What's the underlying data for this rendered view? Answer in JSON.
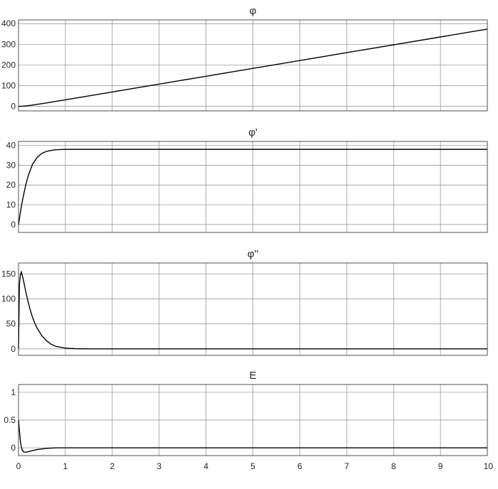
{
  "chart_data": [
    {
      "type": "line",
      "title": "φ",
      "xlim": [
        0,
        10
      ],
      "ylim": [
        -22,
        418
      ],
      "x_ticks": [
        "0",
        "1",
        "2",
        "3",
        "4",
        "5",
        "6",
        "7",
        "8",
        "9",
        "10"
      ],
      "y_ticks": [
        0,
        100,
        200,
        300,
        400
      ],
      "y_tick_labels": [
        "0",
        "100",
        "200",
        "300",
        "400"
      ],
      "x_tick_labels_visible": false,
      "grid": true,
      "series": [
        {
          "x": [
            0,
            0.05,
            0.1,
            0.2,
            0.3,
            0.4,
            0.5,
            0.6,
            0.8,
            1,
            1.5,
            2,
            3,
            4,
            5,
            6,
            7,
            8,
            9,
            10
          ],
          "y": [
            0,
            0.2,
            0.8,
            3,
            6,
            9.5,
            13,
            16.5,
            24,
            31.5,
            50.5,
            69.5,
            107.5,
            145.5,
            183.5,
            221.5,
            259.5,
            297.5,
            335.5,
            373.5
          ]
        }
      ]
    },
    {
      "type": "line",
      "title": "φ'",
      "xlim": [
        0,
        10
      ],
      "ylim": [
        -4,
        42
      ],
      "x_ticks": [
        "0",
        "1",
        "2",
        "3",
        "4",
        "5",
        "6",
        "7",
        "8",
        "9",
        "10"
      ],
      "y_ticks": [
        0,
        10,
        20,
        30,
        40
      ],
      "y_tick_labels": [
        "0",
        "10",
        "20",
        "30",
        "40"
      ],
      "x_tick_labels_visible": false,
      "grid": true,
      "series": [
        {
          "x": [
            0,
            0.03,
            0.06,
            0.1,
            0.15,
            0.2,
            0.25,
            0.3,
            0.4,
            0.5,
            0.6,
            0.7,
            0.8,
            1,
            1.2,
            1.5,
            2,
            3,
            5,
            10
          ],
          "y": [
            0,
            4.5,
            9,
            14,
            19.5,
            24,
            27.5,
            30.5,
            34,
            36,
            37,
            37.5,
            37.8,
            38,
            38,
            38,
            38,
            38,
            38,
            38
          ]
        }
      ]
    },
    {
      "type": "line",
      "title": "φ''",
      "xlim": [
        0,
        10
      ],
      "ylim": [
        -13,
        172
      ],
      "x_ticks": [
        "0",
        "1",
        "2",
        "3",
        "4",
        "5",
        "6",
        "7",
        "8",
        "9",
        "10"
      ],
      "y_ticks": [
        0,
        50,
        100,
        150
      ],
      "y_tick_labels": [
        "0",
        "50",
        "100",
        "150"
      ],
      "x_tick_labels_visible": false,
      "grid": true,
      "series": [
        {
          "x": [
            0,
            0.02,
            0.04,
            0.06,
            0.1,
            0.15,
            0.2,
            0.25,
            0.3,
            0.35,
            0.4,
            0.5,
            0.6,
            0.7,
            0.8,
            1,
            1.2,
            1.5,
            2,
            3,
            5,
            10
          ],
          "y": [
            0,
            130,
            148,
            154,
            140,
            117,
            96,
            78,
            63,
            51,
            41,
            26,
            16,
            9,
            5,
            1.5,
            0.5,
            0,
            0,
            0,
            0,
            0
          ]
        }
      ]
    },
    {
      "type": "line",
      "title": "E",
      "xlim": [
        0,
        10
      ],
      "ylim": [
        -0.14,
        1.14
      ],
      "x_ticks": [
        "0",
        "1",
        "2",
        "3",
        "4",
        "5",
        "6",
        "7",
        "8",
        "9",
        "10"
      ],
      "x_tick_labels": [
        "0",
        "1",
        "2",
        "3",
        "4",
        "5",
        "6",
        "7",
        "8",
        "9",
        "10"
      ],
      "y_ticks": [
        0,
        0.5,
        1
      ],
      "y_tick_labels": [
        "0",
        "0.5",
        "1"
      ],
      "x_tick_labels_visible": true,
      "grid": true,
      "series": [
        {
          "x": [
            0,
            0.02,
            0.04,
            0.06,
            0.08,
            0.1,
            0.15,
            0.2,
            0.3,
            0.4,
            0.6,
            0.8,
            1,
            1.5,
            2,
            5,
            10
          ],
          "y": [
            0.5,
            0.3,
            0.12,
            0.02,
            -0.04,
            -0.07,
            -0.08,
            -0.07,
            -0.05,
            -0.03,
            -0.01,
            0,
            0,
            0,
            0,
            0,
            0
          ]
        }
      ]
    }
  ]
}
